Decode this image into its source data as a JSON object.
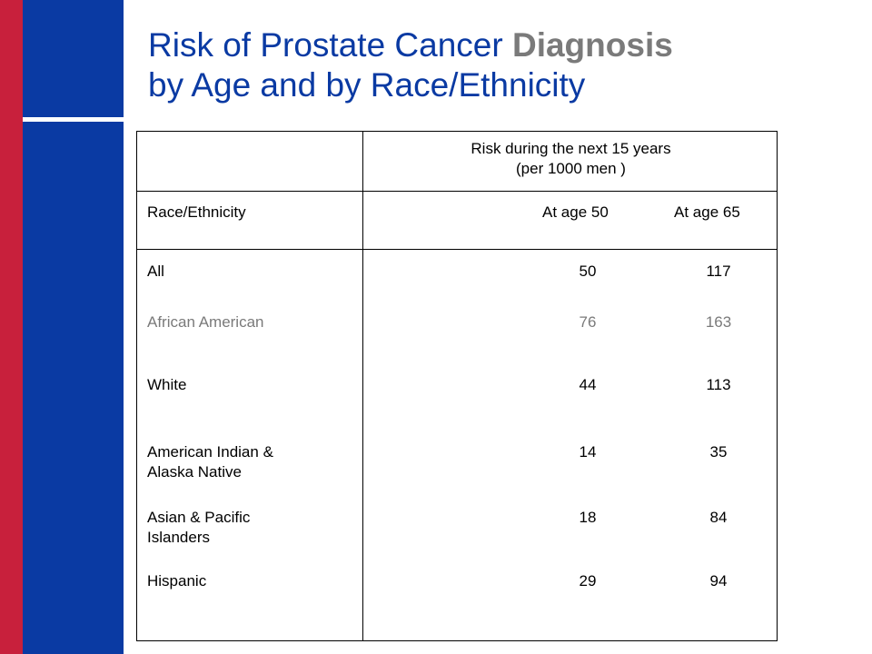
{
  "title": {
    "line1_a": "Risk of Prostate Cancer ",
    "line1_b": "Diagnosis",
    "line2": "by Age and by Race/Ethnicity"
  },
  "colors": {
    "accent_red": "#c8203c",
    "accent_blue": "#0a3aa3",
    "highlight_gray": "#7a7a7a"
  },
  "table": {
    "header_line1": "Risk during the next 15 years",
    "header_line2": "(per 1000 men )",
    "col_label": "Race/Ethnicity",
    "col_age50": "At age 50",
    "col_age65": "At age 65",
    "rows": [
      {
        "label": "All",
        "age50": "50",
        "age65": "117"
      },
      {
        "label": "African American",
        "age50": "76",
        "age65": "163"
      },
      {
        "label": "White",
        "age50": "44",
        "age65": "113"
      },
      {
        "label_line1": "American Indian &",
        "label_line2": "Alaska Native",
        "age50": "14",
        "age65": "35"
      },
      {
        "label_line1": "Asian & Pacific",
        "label_line2": "Islanders",
        "age50": "18",
        "age65": "84"
      },
      {
        "label": "Hispanic",
        "age50": "29",
        "age65": "94"
      }
    ]
  }
}
